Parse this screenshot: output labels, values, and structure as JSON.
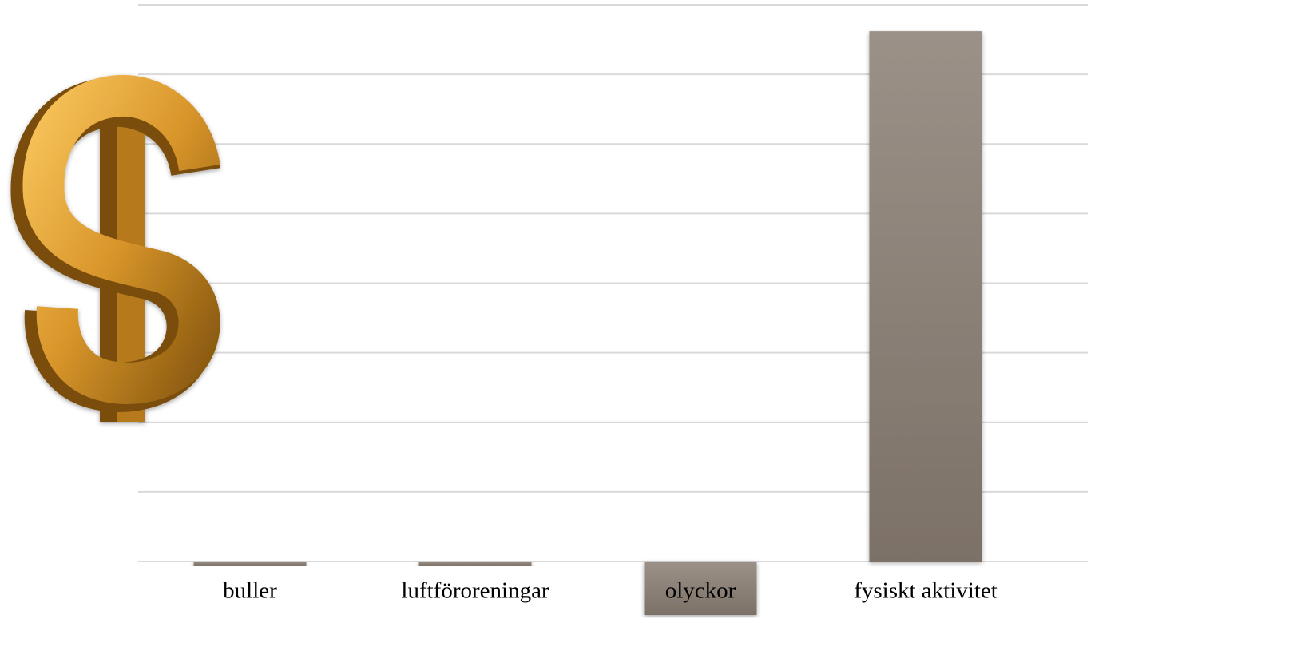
{
  "chart_data": {
    "type": "bar",
    "categories": [
      "buller",
      "luftföroreningar",
      "olyckor",
      "fysiskt aktivitet"
    ],
    "values": [
      -0.06,
      -0.06,
      -0.77,
      7.62
    ],
    "color": "#8a8077",
    "ylim": [
      -1,
      8
    ],
    "yticks": [
      0,
      1,
      2,
      3,
      4,
      5,
      6,
      7,
      8
    ],
    "grid": true
  }
}
